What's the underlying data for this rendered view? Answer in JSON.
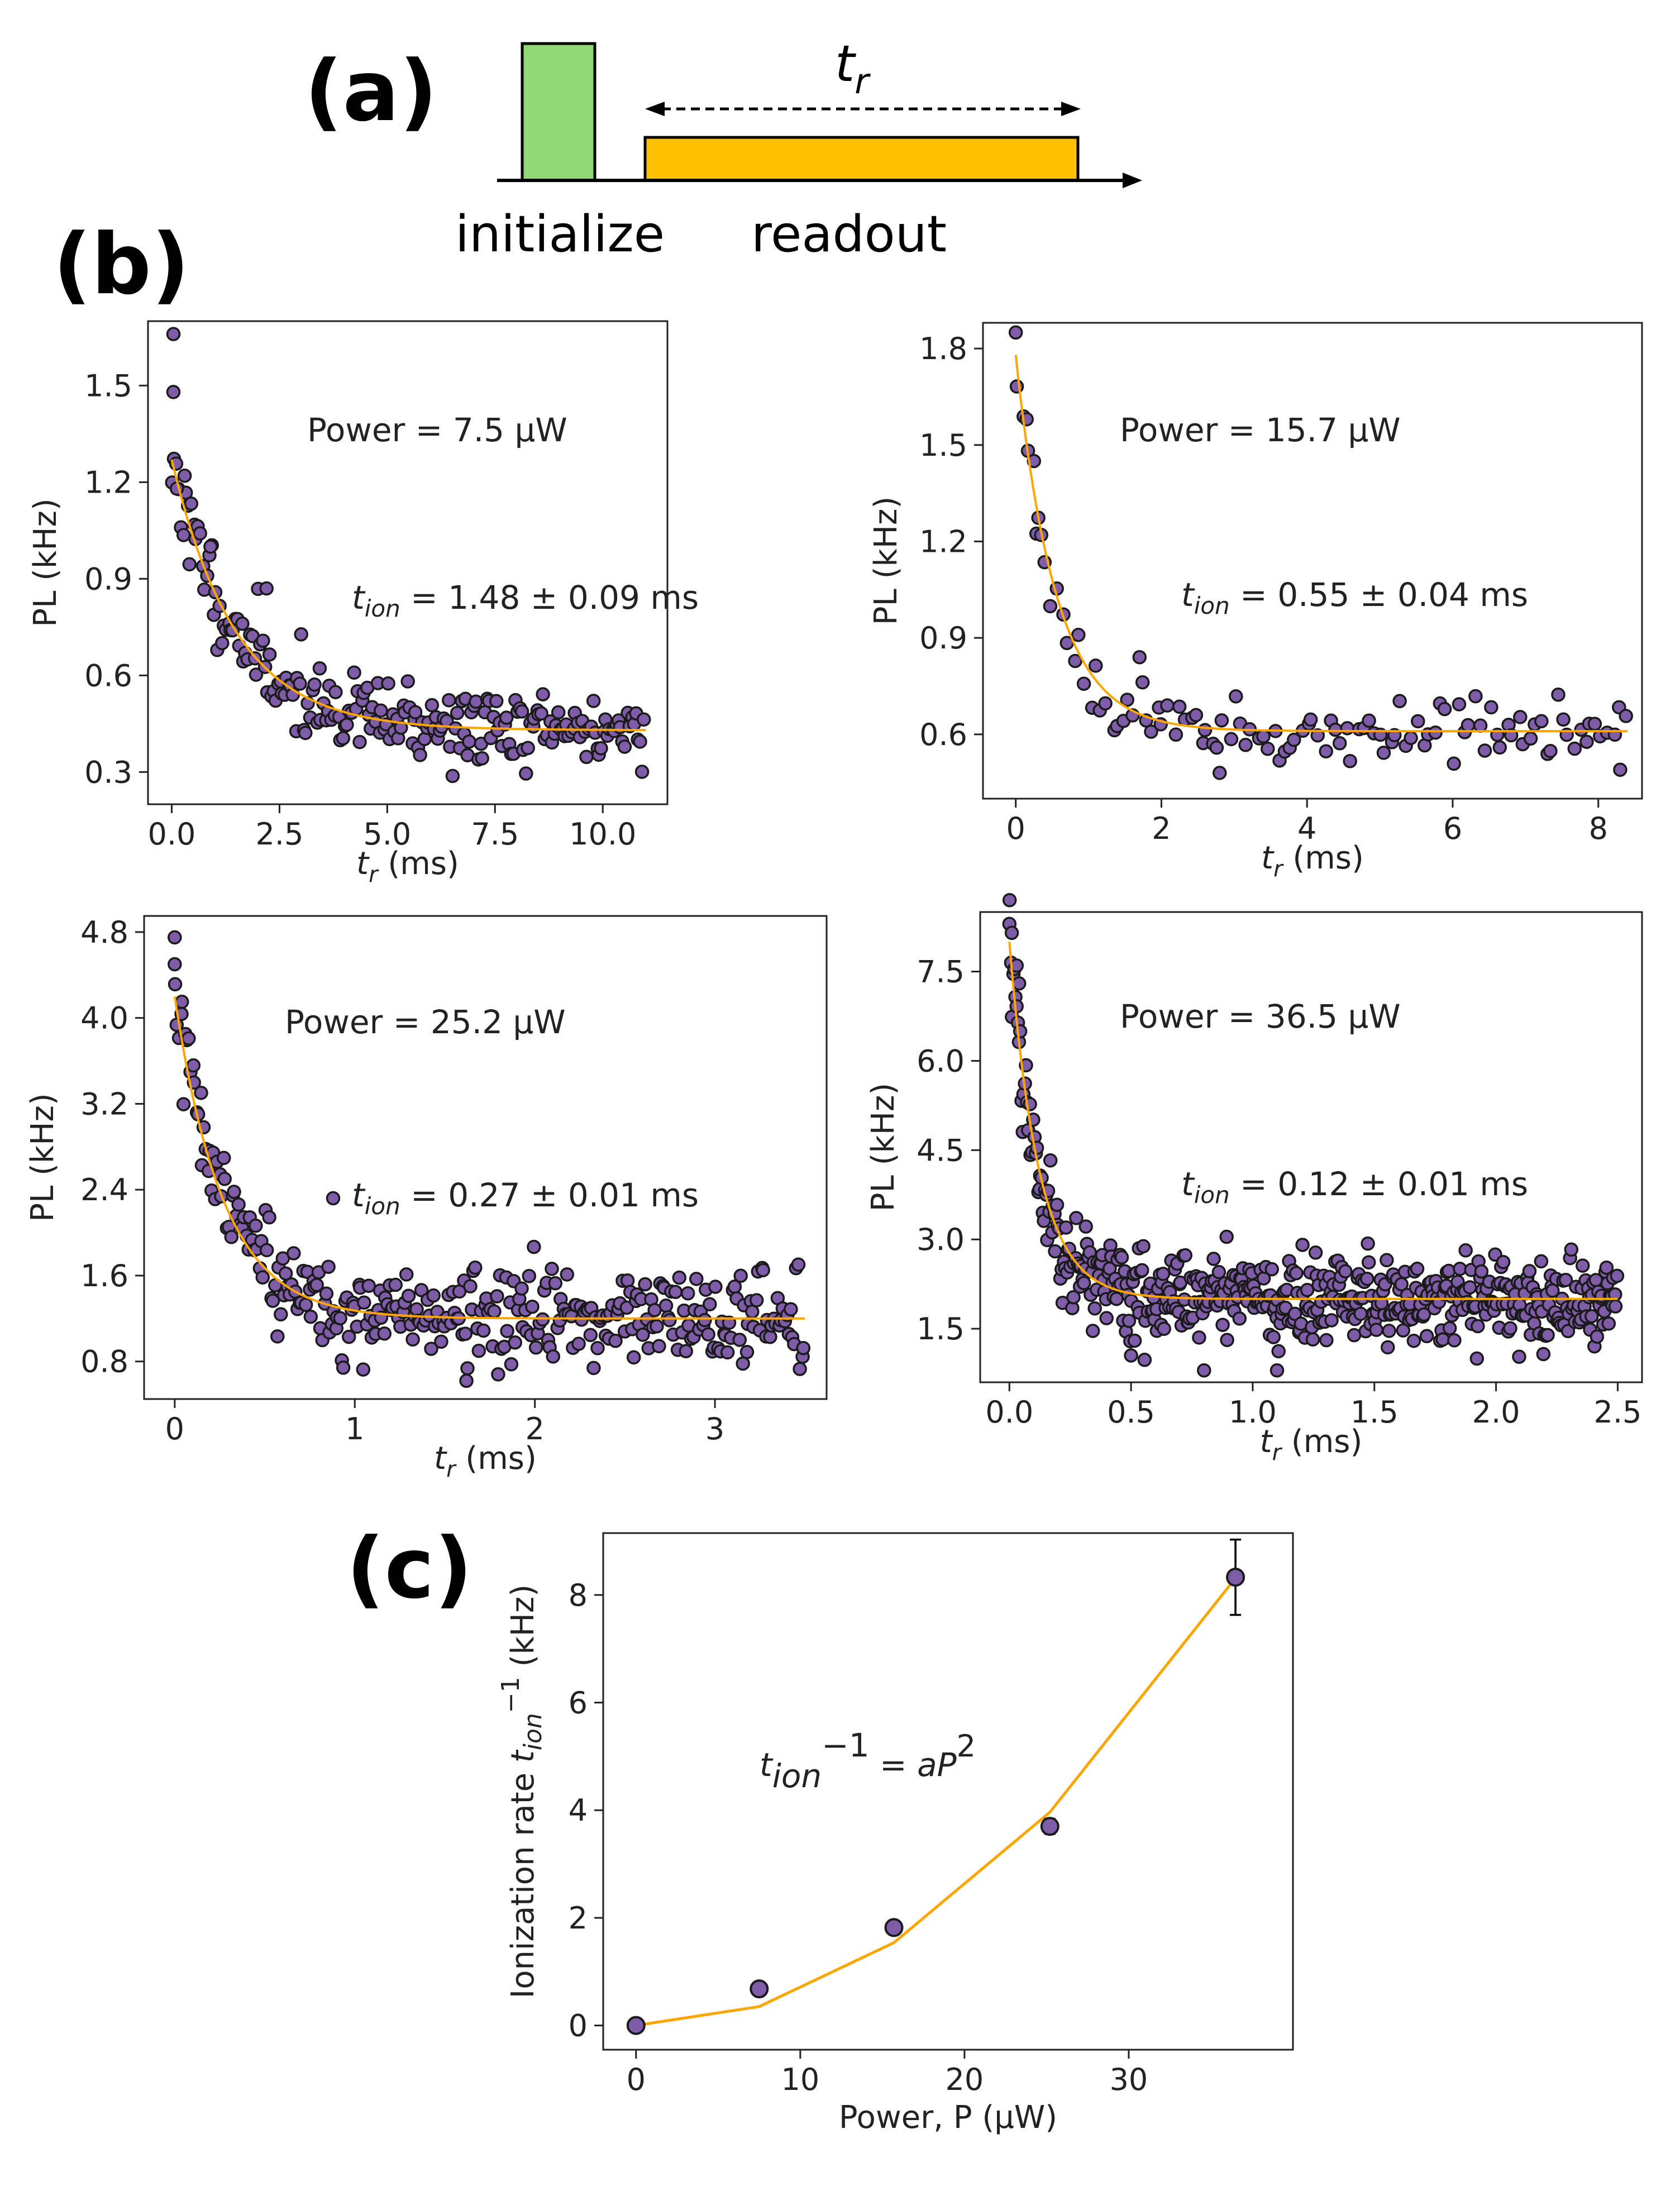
{
  "panel_a": {
    "label": "(a)",
    "tr_label": "t",
    "tr_sub": "r",
    "initialize_label": "initialize",
    "readout_label": "readout",
    "colors": {
      "initialize": "#8ed973",
      "readout": "#ffc000"
    }
  },
  "panel_b": {
    "label": "(b)"
  },
  "panel_c": {
    "label": "(c)"
  },
  "colors": {
    "marker_fill": "#7e5ca8",
    "marker_edge": "#1a1a1a",
    "fit": "#ffa500",
    "axis": "#222222"
  },
  "chart_data": [
    {
      "type": "scatter",
      "id": "b1",
      "power_text": "Power = 7.5 μW",
      "tion_text": " = 1.48 ± 0.09 ms",
      "tion_sym": "t",
      "tion_sub": "ion",
      "xlabel_sym": "t",
      "xlabel_sub": "r",
      "xlabel_rest": " (ms)",
      "ylabel": "PL (kHz)",
      "xlim": [
        -0.55,
        11.5
      ],
      "ylim": [
        0.2,
        1.7
      ],
      "xticks": [
        0.0,
        2.5,
        5.0,
        7.5,
        10.0
      ],
      "xtick_labels": [
        "0.0",
        "2.5",
        "5.0",
        "7.5",
        "10.0"
      ],
      "yticks": [
        0.3,
        0.6,
        0.9,
        1.2,
        1.5
      ],
      "ytick_labels": [
        "0.3",
        "0.6",
        "0.9",
        "1.2",
        "1.5"
      ],
      "fit": {
        "model": "A*exp(-x/tau)+C",
        "A": 0.84,
        "tau": 1.48,
        "C": 0.43,
        "xmax": 11.0
      },
      "n_points": 220,
      "x_range": [
        0,
        11.0
      ],
      "noise": 0.06,
      "seed": 11,
      "highlight_points": [
        [
          0.04,
          1.66
        ],
        [
          0.04,
          1.48
        ],
        [
          0.12,
          1.18
        ],
        [
          0.3,
          1.22
        ],
        [
          0.9,
          1.0
        ],
        [
          2.2,
          0.87
        ]
      ]
    },
    {
      "type": "scatter",
      "id": "b2",
      "power_text": "Power = 15.7 μW",
      "tion_text": " = 0.55 ± 0.04 ms",
      "tion_sym": "t",
      "tion_sub": "ion",
      "xlabel_sym": "t",
      "xlabel_sub": "r",
      "xlabel_rest": " (ms)",
      "ylabel": "PL (kHz)",
      "xlim": [
        -0.45,
        8.6
      ],
      "ylim": [
        0.4,
        1.88
      ],
      "xticks": [
        0,
        2,
        4,
        6,
        8
      ],
      "xtick_labels": [
        "0",
        "2",
        "4",
        "6",
        "8"
      ],
      "yticks": [
        0.6,
        0.9,
        1.2,
        1.5,
        1.8
      ],
      "ytick_labels": [
        "0.6",
        "0.9",
        "1.2",
        "1.5",
        "1.8"
      ],
      "fit": {
        "model": "A*exp(-x/tau)+C",
        "A": 1.17,
        "tau": 0.55,
        "C": 0.61,
        "xmax": 8.4
      },
      "n_points": 110,
      "x_range": [
        0,
        8.4
      ],
      "noise": 0.045,
      "seed": 23,
      "highlight_points": [
        [
          0.0,
          1.85
        ],
        [
          0.15,
          1.58
        ],
        [
          0.25,
          1.45
        ],
        [
          0.35,
          1.22
        ],
        [
          1.7,
          0.84
        ],
        [
          2.8,
          0.48
        ],
        [
          8.3,
          0.49
        ]
      ]
    },
    {
      "type": "scatter",
      "id": "b3",
      "power_text": "Power = 25.2 μW",
      "tion_text": " = 0.27 ± 0.01 ms",
      "tion_sym": "t",
      "tion_sub": "ion",
      "xlabel_sym": "t",
      "xlabel_sub": "r",
      "xlabel_rest": " (ms)",
      "ylabel": "PL (kHz)",
      "xlim": [
        -0.17,
        3.62
      ],
      "ylim": [
        0.45,
        4.95
      ],
      "xticks": [
        0,
        1,
        2,
        3
      ],
      "xtick_labels": [
        "0",
        "1",
        "2",
        "3"
      ],
      "yticks": [
        0.8,
        1.6,
        2.4,
        3.2,
        4.0,
        4.8
      ],
      "ytick_labels": [
        "0.8",
        "1.6",
        "2.4",
        "3.2",
        "4.0",
        "4.8"
      ],
      "fit": {
        "model": "A*exp(-x/tau)+C",
        "A": 3.0,
        "tau": 0.27,
        "C": 1.2,
        "xmax": 3.5
      },
      "n_points": 330,
      "x_range": [
        0,
        3.5
      ],
      "noise": 0.22,
      "seed": 37,
      "highlight_points": [
        [
          0.0,
          4.75
        ],
        [
          0.0,
          4.5
        ],
        [
          0.04,
          4.15
        ],
        [
          0.88,
          2.32
        ],
        [
          1.62,
          0.62
        ]
      ]
    },
    {
      "type": "scatter",
      "id": "b4",
      "power_text": "Power = 36.5 μW",
      "tion_text": " = 0.12 ± 0.01 ms",
      "tion_sym": "t",
      "tion_sub": "ion",
      "xlabel_sym": "t",
      "xlabel_sub": "r",
      "xlabel_rest": " (ms)",
      "ylabel": "PL (kHz)",
      "xlim": [
        -0.12,
        2.6
      ],
      "ylim": [
        0.6,
        8.5
      ],
      "xticks": [
        0.0,
        0.5,
        1.0,
        1.5,
        2.0,
        2.5
      ],
      "xtick_labels": [
        "0.0",
        "0.5",
        "1.0",
        "1.5",
        "2.0",
        "2.5"
      ],
      "yticks": [
        1.5,
        3.0,
        4.5,
        6.0,
        7.5
      ],
      "ytick_labels": [
        "1.5",
        "3.0",
        "4.5",
        "6.0",
        "7.5"
      ],
      "fit": {
        "model": "A*exp(-x/tau)+C",
        "A": 6.0,
        "tau": 0.12,
        "C": 2.0,
        "xmax": 2.5
      },
      "n_points": 520,
      "x_range": [
        0,
        2.5
      ],
      "noise": 0.38,
      "seed": 53,
      "highlight_points": [
        [
          0.0,
          8.3
        ],
        [
          0.01,
          8.15
        ],
        [
          0.03,
          7.6
        ],
        [
          0.04,
          7.3
        ],
        [
          0.5,
          1.05
        ],
        [
          0.8,
          0.8
        ],
        [
          1.1,
          0.8
        ]
      ]
    },
    {
      "type": "scatter",
      "id": "c",
      "ylabel_text": "Ionization rate ",
      "ylabel_sym": "t",
      "ylabel_sub": "ion",
      "ylabel_sup": "−1",
      "ylabel_unit": " (kHz)",
      "xlabel": "Power, P (μW)",
      "eq_sym": "t",
      "eq_sub": "ion",
      "eq_sup": "−1",
      "eq_mid": " = ",
      "eq_a": "a",
      "eq_P": "P",
      "eq_exp": "2",
      "xlim": [
        -2,
        40
      ],
      "ylim": [
        -0.45,
        9.15
      ],
      "xticks": [
        0,
        10,
        20,
        30
      ],
      "xtick_labels": [
        "0",
        "10",
        "20",
        "30"
      ],
      "yticks": [
        0,
        2,
        4,
        6,
        8
      ],
      "ytick_labels": [
        "0",
        "2",
        "4",
        "6",
        "8"
      ],
      "points": [
        {
          "x": 0.0,
          "y": 0.0,
          "err": 0.0
        },
        {
          "x": 7.5,
          "y": 0.68,
          "err": 0.04
        },
        {
          "x": 15.7,
          "y": 1.82,
          "err": 0.13
        },
        {
          "x": 25.2,
          "y": 3.7,
          "err": 0.14
        },
        {
          "x": 36.5,
          "y": 8.33,
          "err": 0.7
        }
      ],
      "fit": {
        "model": "a*P^2",
        "a": 0.00624,
        "x": [
          0,
          7.5,
          15.7,
          25.2,
          36.5
        ]
      }
    }
  ]
}
